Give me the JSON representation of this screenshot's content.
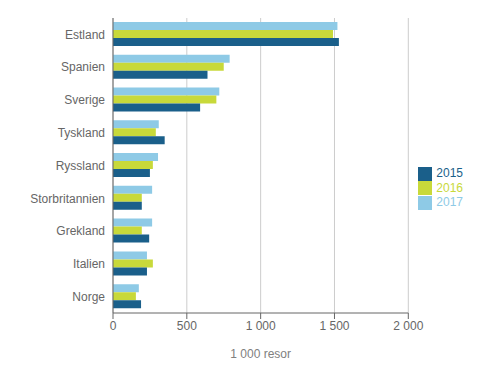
{
  "chart_data": {
    "type": "bar",
    "orientation": "horizontal",
    "categories": [
      "Estland",
      "Spanien",
      "Sverige",
      "Tyskland",
      "Ryssland",
      "Storbritannien",
      "Grekland",
      "Italien",
      "Norge"
    ],
    "series": [
      {
        "name": "2017",
        "color": "#8ecae6",
        "values": [
          1520,
          790,
          720,
          310,
          305,
          265,
          265,
          230,
          175
        ]
      },
      {
        "name": "2016",
        "color": "#c8d93a",
        "values": [
          1490,
          750,
          700,
          290,
          270,
          195,
          195,
          270,
          155
        ]
      },
      {
        "name": "2015",
        "color": "#1a5f8a",
        "values": [
          1530,
          640,
          590,
          350,
          250,
          195,
          245,
          230,
          190
        ]
      }
    ],
    "xlabel": "1 000 resor",
    "xlim": [
      0,
      2000
    ],
    "xticks": [
      0,
      500,
      {
        "value": 1000,
        "label": "1 000"
      },
      {
        "value": 1500,
        "label": "1 500"
      },
      {
        "value": 2000,
        "label": "2 000"
      }
    ],
    "grid": true,
    "legend": "right"
  }
}
